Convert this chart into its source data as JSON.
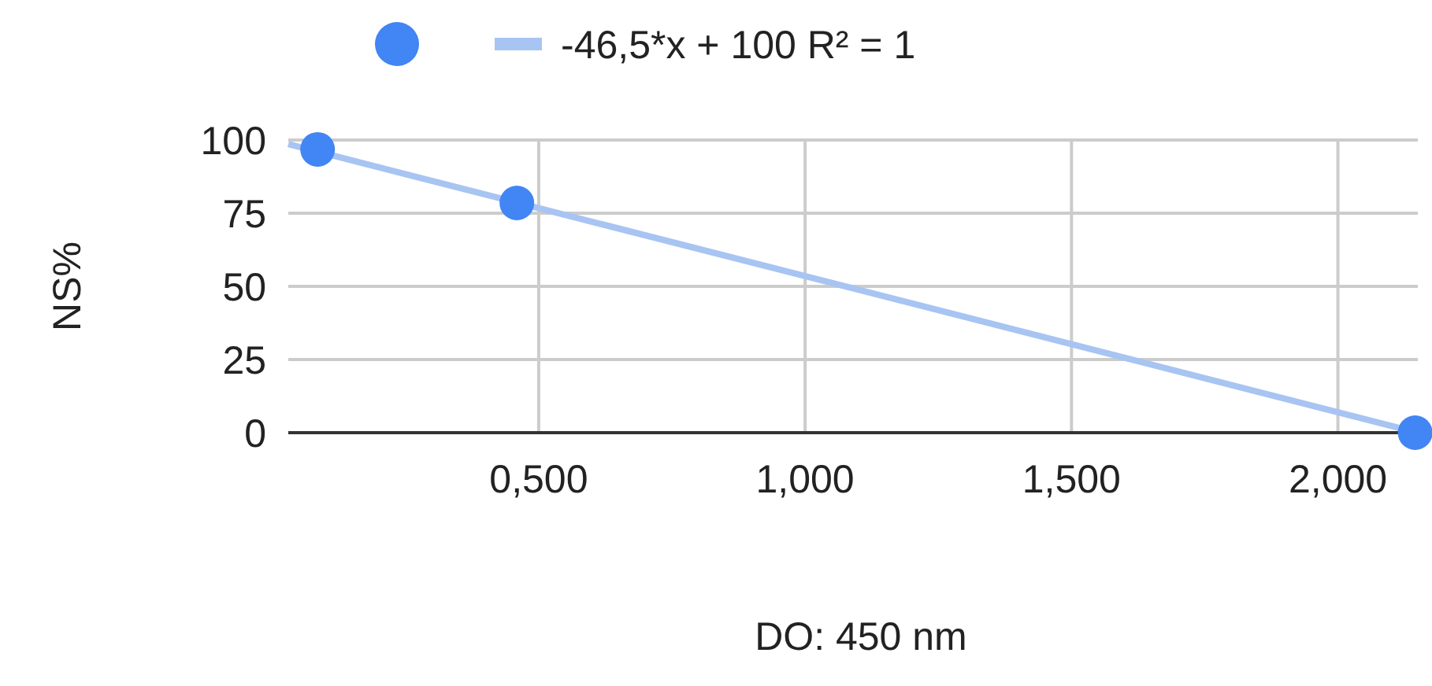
{
  "chart_data": {
    "type": "scatter",
    "xlabel": "DO: 450 nm",
    "ylabel": "NS%",
    "xlim": [
      0.03,
      2.15
    ],
    "ylim": [
      0,
      100
    ],
    "xticks": [
      {
        "value": 0.5,
        "label": "0,500"
      },
      {
        "value": 1,
        "label": "1,000"
      },
      {
        "value": 1.5,
        "label": "1,500"
      },
      {
        "value": 2,
        "label": "2,000"
      }
    ],
    "yticks": [
      0,
      25,
      50,
      75,
      100
    ],
    "grid": true,
    "legend": "top",
    "series": [
      {
        "color": "#4285f4",
        "marker": "circle",
        "x": [
          0.085,
          0.459,
          2.145
        ],
        "values": [
          96.8,
          78.5,
          0
        ]
      },
      {
        "type": "line",
        "name": "-46,5*x + 100 R² = 1",
        "color": "#a8c4f2",
        "x": [
          0.03,
          2.15
        ],
        "values": [
          98.6,
          0.0
        ]
      }
    ]
  }
}
